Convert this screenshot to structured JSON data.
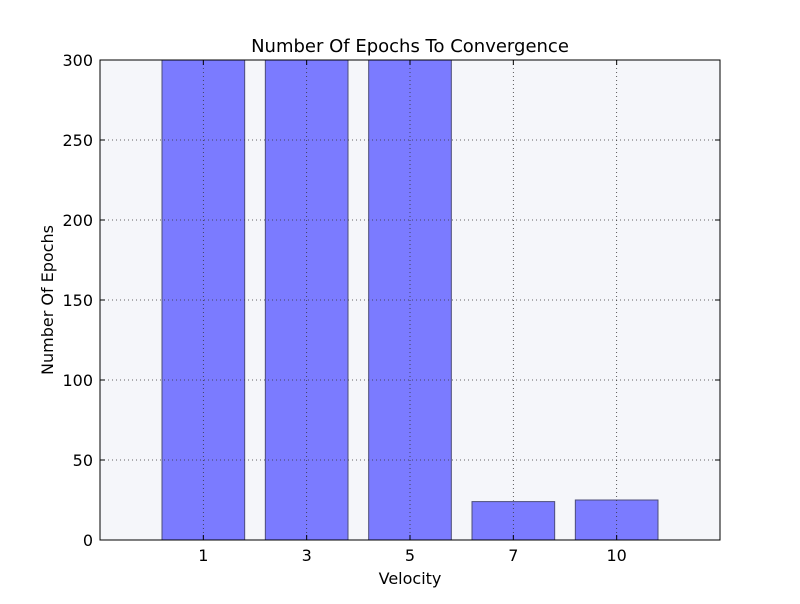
{
  "chart_data": {
    "type": "bar",
    "title": "Number Of Epochs To Convergence",
    "xlabel": "Velocity",
    "ylabel": "Number Of Epochs",
    "categories": [
      "1",
      "3",
      "5",
      "7",
      "10"
    ],
    "values": [
      300,
      300,
      300,
      24,
      25
    ],
    "ylim": [
      0,
      300
    ],
    "yticks": [
      "0",
      "50",
      "100",
      "150",
      "200",
      "250",
      "300"
    ],
    "grid": true,
    "colors": {
      "bar_fill": "#7b7bff",
      "bar_edge": "#4d4d7a",
      "plot_background": "#f5f6fa",
      "grid": "#333333",
      "axes": "#000000"
    }
  }
}
